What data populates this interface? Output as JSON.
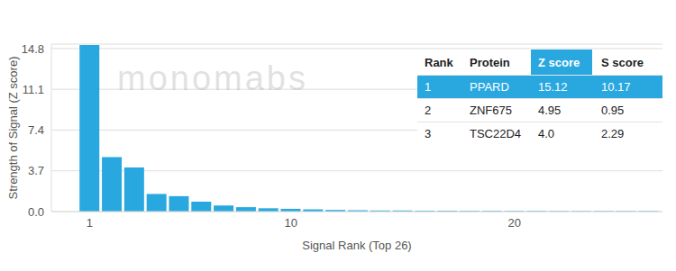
{
  "chart_data": {
    "type": "bar",
    "watermark": "monomabs",
    "x_label": "Signal Rank (Top 26)",
    "y_label": "Strength of Signal (Z score)",
    "categories": [
      "1",
      null,
      null,
      null,
      null,
      null,
      null,
      null,
      null,
      "10",
      null,
      null,
      null,
      null,
      null,
      null,
      null,
      null,
      null,
      "20",
      null,
      null,
      null,
      null,
      null,
      null
    ],
    "values": [
      15.12,
      4.95,
      4.0,
      1.6,
      1.4,
      0.9,
      0.55,
      0.4,
      0.3,
      0.25,
      0.2,
      0.15,
      0.12,
      0.1,
      0.1,
      0.08,
      0.08,
      0.07,
      0.07,
      0.06,
      0.06,
      0.05,
      0.05,
      0.05,
      0.05,
      0.05
    ],
    "color": "#29a8e0",
    "ylim": [
      0,
      15.2
    ],
    "yticks": [
      {
        "value": 0,
        "label": "0.0"
      },
      3.7,
      7.4,
      11.1,
      14.8
    ],
    "grid": true,
    "table": {
      "columns": [
        "Rank",
        "Protein",
        "Z score",
        "S score"
      ],
      "rows": [
        [
          "1",
          "PPARD",
          "15.12",
          "10.17"
        ],
        [
          "2",
          "ZNF675",
          "4.95",
          "0.95"
        ],
        [
          "3",
          "TSC22D4",
          "4.0",
          "2.29"
        ]
      ]
    }
  }
}
